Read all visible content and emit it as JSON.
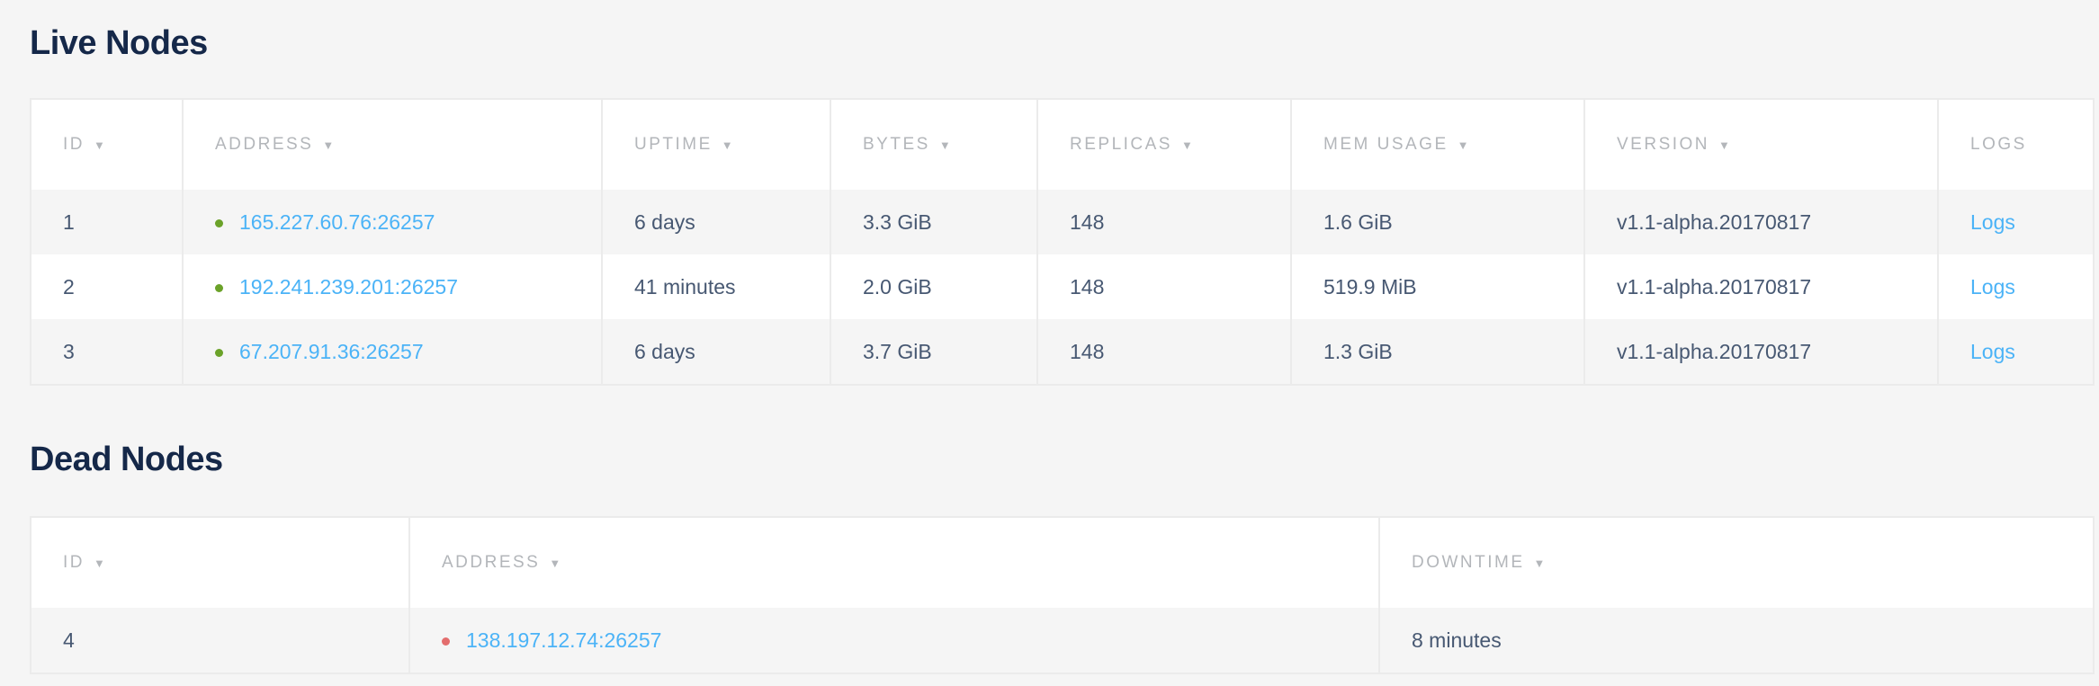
{
  "live": {
    "title": "Live Nodes",
    "columns": [
      "ID",
      "ADDRESS",
      "UPTIME",
      "BYTES",
      "REPLICAS",
      "MEM USAGE",
      "VERSION",
      "LOGS"
    ],
    "sort_icon": "▼",
    "rows": [
      {
        "id": "1",
        "address": "165.227.60.76:26257",
        "uptime": "6 days",
        "bytes": "3.3 GiB",
        "replicas": "148",
        "mem": "1.6 GiB",
        "version": "v1.1-alpha.20170817",
        "logs": "Logs"
      },
      {
        "id": "2",
        "address": "192.241.239.201:26257",
        "uptime": "41 minutes",
        "bytes": "2.0 GiB",
        "replicas": "148",
        "mem": "519.9 MiB",
        "version": "v1.1-alpha.20170817",
        "logs": "Logs"
      },
      {
        "id": "3",
        "address": "67.207.91.36:26257",
        "uptime": "6 days",
        "bytes": "3.7 GiB",
        "replicas": "148",
        "mem": "1.3 GiB",
        "version": "v1.1-alpha.20170817",
        "logs": "Logs"
      }
    ]
  },
  "dead": {
    "title": "Dead Nodes",
    "columns": [
      "ID",
      "ADDRESS",
      "DOWNTIME"
    ],
    "rows": [
      {
        "id": "4",
        "address": "138.197.12.74:26257",
        "downtime": "8 minutes"
      }
    ]
  },
  "colors": {
    "live_dot": "#6ba229",
    "dead_dot": "#e36d6d",
    "link": "#4bb3f7",
    "title": "#152849"
  }
}
